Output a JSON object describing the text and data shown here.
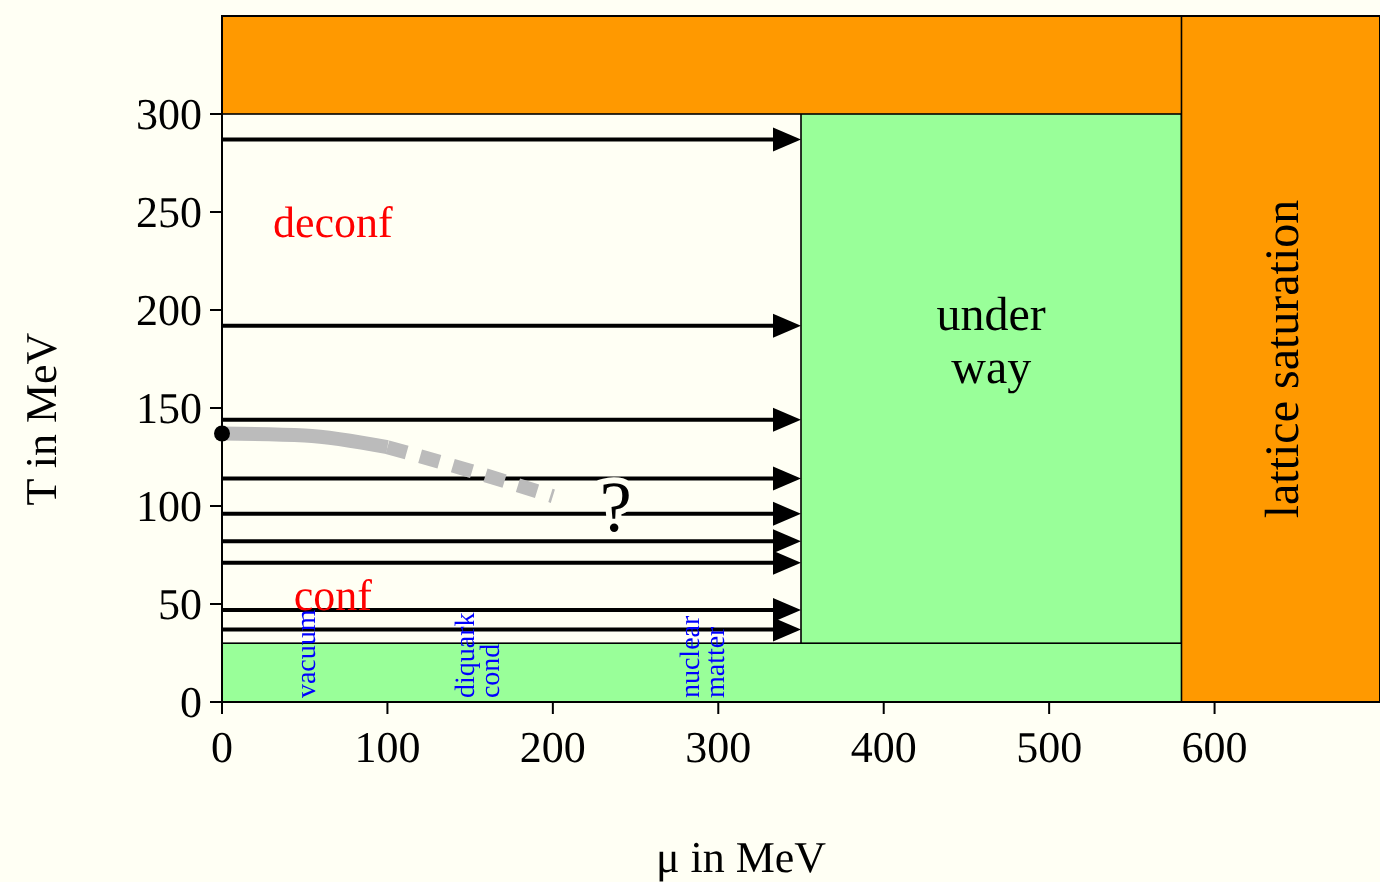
{
  "chart_data": {
    "type": "line",
    "xlabel": "μ in MeV",
    "ylabel": "T in MeV",
    "xlim": [
      0,
      700
    ],
    "ylim": [
      0,
      350
    ],
    "xticks": [
      0,
      100,
      200,
      300,
      400,
      500,
      600
    ],
    "yticks": [
      0,
      50,
      100,
      150,
      200,
      250,
      300
    ],
    "grid": false,
    "bands": [
      {
        "axis": "x",
        "from": 350,
        "to": 580,
        "color": "#99ff99"
      },
      {
        "axis": "y",
        "from": 0,
        "to": 30,
        "color": "#99ff99"
      },
      {
        "axis": "y",
        "from": 300,
        "to": 350,
        "color": "#ff9900"
      },
      {
        "axis": "x",
        "from": 580,
        "to": 700,
        "color": "#ff9900"
      }
    ],
    "series": [
      {
        "color": "#bbbbbb",
        "line_style": "solid",
        "x": [
          0,
          50,
          100
        ],
        "values": [
          137,
          136,
          130
        ]
      },
      {
        "color": "#bbbbbb",
        "line_style": "dashed",
        "x": [
          100,
          150,
          200
        ],
        "values": [
          130,
          118,
          105
        ]
      },
      {
        "type": "scatter",
        "color": "#000000",
        "marker": "circle",
        "x": [
          0
        ],
        "values": [
          137
        ]
      }
    ],
    "annotations": [
      "deconf",
      "conf",
      "?",
      "under\nway",
      "lattice saturation",
      "vacuum",
      "diquark\ncond",
      "nuclear\nmatter"
    ]
  }
}
